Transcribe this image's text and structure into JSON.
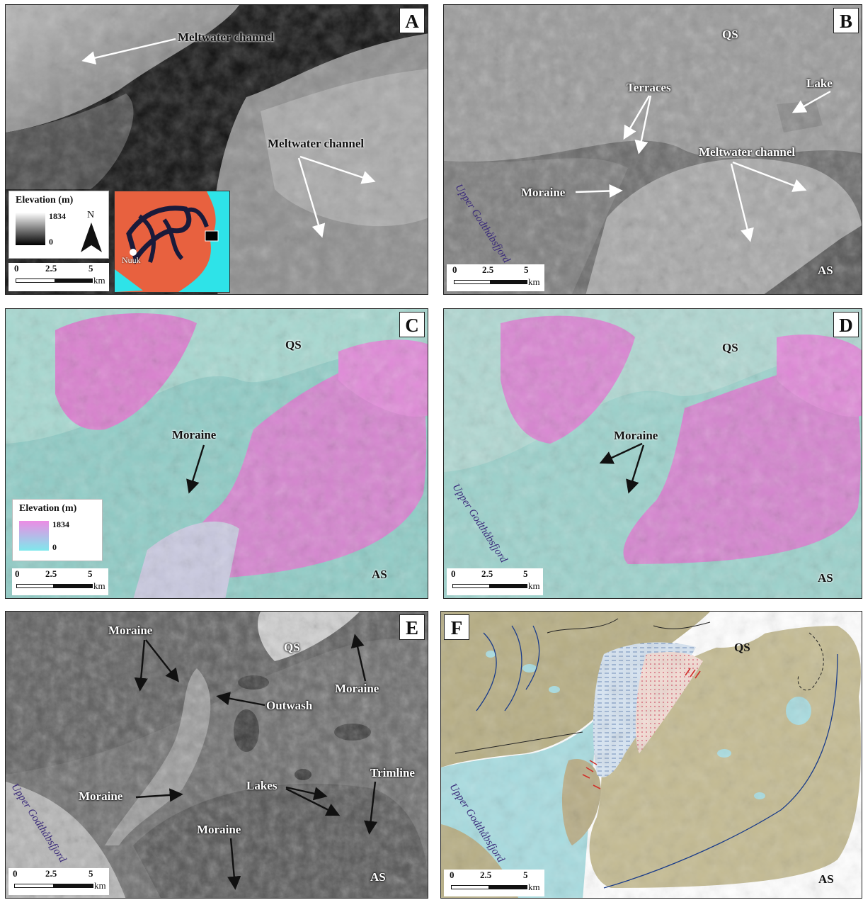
{
  "panels": {
    "A": {
      "label": "A",
      "callouts": {
        "channel1": "Meltwater channel",
        "channel2": "Meltwater channel"
      }
    },
    "B": {
      "label": "B",
      "callouts": {
        "qs": "QS",
        "terraces": "Terraces",
        "lake": "Lake",
        "channel": "Meltwater channel",
        "moraine": "Moraine",
        "as": "AS"
      },
      "fjord": "Upper Godthåbsfjord"
    },
    "C": {
      "label": "C",
      "callouts": {
        "qs": "QS",
        "moraine": "Moraine",
        "as": "AS"
      }
    },
    "D": {
      "label": "D",
      "callouts": {
        "qs": "QS",
        "moraine": "Moraine",
        "as": "AS"
      },
      "fjord": "Upper Godthåbsfjord"
    },
    "E": {
      "label": "E",
      "callouts": {
        "moraine1": "Moraine",
        "qs": "QS",
        "moraine2": "Moraine",
        "outwash": "Outwash",
        "moraine3": "Moraine",
        "lakes": "Lakes",
        "trimline": "Trimline",
        "moraine4": "Moraine",
        "as": "AS"
      },
      "fjord": "Upper Godthåbsfjord"
    },
    "F": {
      "label": "F",
      "callouts": {
        "qs": "QS",
        "as": "AS"
      },
      "fjord": "Upper Godthåbsfjord"
    }
  },
  "legend_a": {
    "title": "Elevation (m)",
    "max": "1834",
    "min": "0",
    "north": "N",
    "inset_city": "Nuuk"
  },
  "legend_c": {
    "title": "Elevation (m)",
    "max": "1834",
    "min": "0"
  },
  "scalebar": {
    "t0": "0",
    "t1": "2.5",
    "t2": "5",
    "unit": "km"
  },
  "colors": {
    "panel_a_low": "#0c0c0c",
    "panel_a_high": "#d8d8d8",
    "elev_high": "#e48ad8",
    "elev_low": "#8fd8d0",
    "inset_land": "#e8613f",
    "inset_sea": "#2ee3e8",
    "map_f_land": "#bdb38a",
    "map_f_water": "#a8dce0",
    "outwash": "#f3dcd4",
    "moraine_red": "#d0302a"
  }
}
